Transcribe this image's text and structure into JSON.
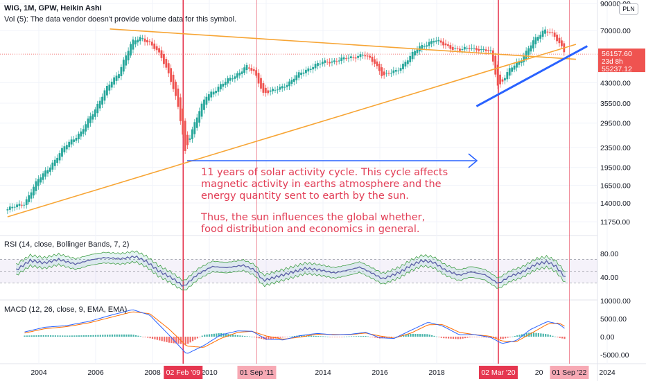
{
  "header": {
    "symbol_line": "WIG, 1M, GPW, Heikin Ashi",
    "volume_line": "Vol (5): The data vendor doesn't provide volume data for this symbol."
  },
  "currency_badge": "PLN",
  "annotation": {
    "lines": [
      "11 years of solar activity cycle. This cycle affects",
      "magnetic activity in earths atmosphere and the",
      "energy quantity sent to earth by the sun.",
      "Thus, the sun influences the global whether,",
      "food distribution and economics in general."
    ]
  },
  "rsi_label": "RSI (14, close, Bollinger Bands, 7, 2)",
  "macd_label": "MACD (12, 26, close, 9, EMA, EMA)",
  "price_badges": {
    "last": "56157.60",
    "countdown": "23d 8h",
    "other": "55237.12"
  },
  "vline_labels": [
    {
      "x": 2009.08,
      "text": "02 Feb '09",
      "strong": true
    },
    {
      "x": 2011.67,
      "text": "01 Sep '11",
      "strong": false
    },
    {
      "x": 2020.17,
      "text": "02 Mar '20",
      "strong": true
    },
    {
      "x": 2022.67,
      "text": "01 Sep '22",
      "strong": false
    }
  ],
  "x_axis": {
    "ticks": [
      2004,
      2006,
      2008,
      2010,
      2012,
      2014,
      2016,
      2018,
      2020,
      2024
    ],
    "extra_label": "20"
  },
  "colors": {
    "up": "#26a69a",
    "down": "#ef5350",
    "trend_orange": "#f7a535",
    "trend_blue": "#2962ff",
    "vline": "#e5364f",
    "rsi": "#5b5ea6",
    "macd_line": "#2962ff",
    "signal_line": "#ff6d00"
  },
  "chart_data": [
    {
      "type": "candlestick",
      "style": "Heikin Ashi",
      "title": "WIG, 1M, GPW, Heikin Ashi",
      "scale": "log",
      "y_ticks": [
        90000,
        70000,
        56157.6,
        43000,
        35500,
        29500,
        23500,
        19500,
        16500,
        14000,
        11750
      ],
      "x_range": [
        2003.0,
        2025.2
      ],
      "price_keypoints": [
        [
          2002.9,
          13200
        ],
        [
          2003.5,
          14000
        ],
        [
          2004.0,
          17500
        ],
        [
          2004.6,
          21000
        ],
        [
          2005.0,
          24500
        ],
        [
          2005.5,
          27000
        ],
        [
          2006.0,
          34000
        ],
        [
          2006.4,
          41000
        ],
        [
          2006.8,
          47000
        ],
        [
          2007.3,
          63000
        ],
        [
          2007.6,
          66000
        ],
        [
          2007.9,
          62000
        ],
        [
          2008.3,
          55000
        ],
        [
          2008.6,
          46000
        ],
        [
          2008.9,
          34000
        ],
        [
          2009.15,
          22500
        ],
        [
          2009.5,
          30000
        ],
        [
          2009.9,
          38000
        ],
        [
          2010.4,
          42000
        ],
        [
          2010.9,
          46000
        ],
        [
          2011.3,
          50000
        ],
        [
          2011.6,
          47000
        ],
        [
          2011.9,
          39000
        ],
        [
          2012.3,
          40000
        ],
        [
          2012.8,
          43000
        ],
        [
          2013.2,
          47000
        ],
        [
          2013.6,
          50000
        ],
        [
          2014.0,
          52000
        ],
        [
          2014.5,
          53000
        ],
        [
          2015.0,
          54500
        ],
        [
          2015.4,
          56000
        ],
        [
          2015.8,
          52000
        ],
        [
          2016.1,
          46000
        ],
        [
          2016.6,
          48000
        ],
        [
          2017.0,
          54000
        ],
        [
          2017.4,
          60000
        ],
        [
          2017.9,
          64000
        ],
        [
          2018.3,
          61000
        ],
        [
          2018.8,
          58000
        ],
        [
          2019.2,
          60000
        ],
        [
          2019.6,
          58000
        ],
        [
          2019.9,
          57500
        ],
        [
          2020.17,
          41000
        ],
        [
          2020.6,
          49000
        ],
        [
          2021.0,
          54000
        ],
        [
          2021.4,
          63000
        ],
        [
          2021.8,
          71000
        ],
        [
          2022.0,
          69000
        ],
        [
          2022.3,
          62000
        ],
        [
          2022.55,
          56157.6
        ]
      ],
      "trendlines": [
        {
          "color": "orange",
          "points": [
            [
              2006.5,
              71000
            ],
            [
              2022.9,
              53500
            ]
          ]
        },
        {
          "color": "orange",
          "points": [
            [
              2002.9,
              12300
            ],
            [
              2022.9,
              61500
            ]
          ]
        },
        {
          "color": "blue",
          "points": [
            [
              2019.4,
              34500
            ],
            [
              2023.3,
              60500
            ]
          ]
        }
      ]
    },
    {
      "type": "line",
      "title": "RSI (14, close, Bollinger Bands, 7, 2)",
      "y_ticks": [
        80,
        40
      ],
      "bands": [
        30,
        50,
        70
      ],
      "rsi_keypoints": [
        [
          2003.2,
          52
        ],
        [
          2003.7,
          68
        ],
        [
          2004.2,
          64
        ],
        [
          2004.7,
          70
        ],
        [
          2005.3,
          62
        ],
        [
          2005.8,
          69
        ],
        [
          2006.3,
          73
        ],
        [
          2006.9,
          71
        ],
        [
          2007.4,
          75
        ],
        [
          2007.8,
          66
        ],
        [
          2008.2,
          51
        ],
        [
          2008.7,
          38
        ],
        [
          2009.1,
          24
        ],
        [
          2009.6,
          45
        ],
        [
          2010.1,
          58
        ],
        [
          2010.6,
          56
        ],
        [
          2011.2,
          60
        ],
        [
          2011.6,
          52
        ],
        [
          2011.9,
          34
        ],
        [
          2012.4,
          41
        ],
        [
          2012.9,
          48
        ],
        [
          2013.4,
          55
        ],
        [
          2013.9,
          52
        ],
        [
          2014.4,
          47
        ],
        [
          2014.9,
          52
        ],
        [
          2015.3,
          57
        ],
        [
          2015.8,
          45
        ],
        [
          2016.1,
          37
        ],
        [
          2016.7,
          48
        ],
        [
          2017.1,
          60
        ],
        [
          2017.5,
          68
        ],
        [
          2017.9,
          65
        ],
        [
          2018.3,
          52
        ],
        [
          2018.8,
          43
        ],
        [
          2019.2,
          49
        ],
        [
          2019.7,
          44
        ],
        [
          2020.17,
          29
        ],
        [
          2020.6,
          42
        ],
        [
          2021.0,
          48
        ],
        [
          2021.5,
          62
        ],
        [
          2021.9,
          66
        ],
        [
          2022.2,
          58
        ],
        [
          2022.55,
          38
        ]
      ]
    },
    {
      "type": "bar+line",
      "title": "MACD (12, 26, close, 9, EMA, EMA)",
      "y_ticks": [
        10000,
        5000,
        0,
        -5000
      ],
      "macd_keypoints": [
        [
          2003.5,
          1300
        ],
        [
          2004.2,
          2600
        ],
        [
          2005.0,
          3100
        ],
        [
          2005.8,
          4300
        ],
        [
          2006.6,
          6100
        ],
        [
          2007.3,
          7500
        ],
        [
          2007.9,
          6000
        ],
        [
          2008.6,
          300
        ],
        [
          2009.2,
          -4800
        ],
        [
          2009.8,
          -2500
        ],
        [
          2010.4,
          500
        ],
        [
          2011.0,
          1600
        ],
        [
          2011.5,
          1500
        ],
        [
          2012.0,
          -700
        ],
        [
          2012.6,
          -900
        ],
        [
          2013.2,
          300
        ],
        [
          2013.8,
          900
        ],
        [
          2014.4,
          500
        ],
        [
          2015.0,
          700
        ],
        [
          2015.5,
          1200
        ],
        [
          2016.0,
          -300
        ],
        [
          2016.5,
          -500
        ],
        [
          2017.1,
          1800
        ],
        [
          2017.7,
          4000
        ],
        [
          2018.2,
          3000
        ],
        [
          2018.8,
          500
        ],
        [
          2019.3,
          600
        ],
        [
          2019.9,
          -200
        ],
        [
          2020.3,
          -1900
        ],
        [
          2020.8,
          -1100
        ],
        [
          2021.3,
          2000
        ],
        [
          2021.9,
          4200
        ],
        [
          2022.3,
          3500
        ],
        [
          2022.55,
          2000
        ]
      ],
      "signal_keypoints": [
        [
          2003.5,
          1000
        ],
        [
          2004.2,
          2200
        ],
        [
          2005.0,
          2800
        ],
        [
          2005.8,
          3900
        ],
        [
          2006.6,
          5500
        ],
        [
          2007.3,
          6900
        ],
        [
          2007.9,
          6400
        ],
        [
          2008.6,
          2000
        ],
        [
          2009.2,
          -2600
        ],
        [
          2009.8,
          -3000
        ],
        [
          2010.4,
          -500
        ],
        [
          2011.0,
          1200
        ],
        [
          2011.5,
          1500
        ],
        [
          2012.0,
          200
        ],
        [
          2012.6,
          -700
        ],
        [
          2013.2,
          -100
        ],
        [
          2013.8,
          700
        ],
        [
          2014.4,
          600
        ],
        [
          2015.0,
          600
        ],
        [
          2015.5,
          1000
        ],
        [
          2016.0,
          200
        ],
        [
          2016.5,
          -400
        ],
        [
          2017.1,
          1000
        ],
        [
          2017.7,
          3300
        ],
        [
          2018.2,
          3400
        ],
        [
          2018.8,
          1200
        ],
        [
          2019.3,
          600
        ],
        [
          2019.9,
          100
        ],
        [
          2020.3,
          -1200
        ],
        [
          2020.8,
          -1400
        ],
        [
          2021.3,
          800
        ],
        [
          2021.9,
          3500
        ],
        [
          2022.3,
          3800
        ],
        [
          2022.55,
          2700
        ]
      ]
    }
  ]
}
